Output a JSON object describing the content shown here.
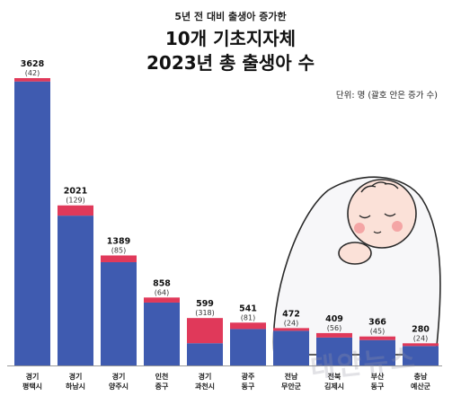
{
  "header": {
    "subtitle": "5년 전 대비 출생아 증가한",
    "title_line1": "10개 기초지자체",
    "title_line2": "2023년 총 출생아 수",
    "unit_note": "단위: 명 (괄호 안은 증가 수)"
  },
  "watermark": "태안뉴스",
  "colors": {
    "base": "#3f5bb0",
    "increase": "#e0395a"
  },
  "chart_data": {
    "type": "bar",
    "stacked": true,
    "title": "",
    "xlabel": "",
    "ylabel": "",
    "ylim": [
      0,
      3700
    ],
    "grid": false,
    "legend": "none",
    "categories": [
      [
        "경기",
        "평택시"
      ],
      [
        "경기",
        "하남시"
      ],
      [
        "경기",
        "양주시"
      ],
      [
        "인천",
        "중구"
      ],
      [
        "경기",
        "과천시"
      ],
      [
        "광주",
        "동구"
      ],
      [
        "전남",
        "무안군"
      ],
      [
        "전북",
        "김제시"
      ],
      [
        "부산",
        "동구"
      ],
      [
        "충남",
        "예산군"
      ]
    ],
    "totals": [
      3628,
      2021,
      1389,
      858,
      599,
      541,
      472,
      409,
      366,
      280
    ],
    "increases": [
      42,
      129,
      85,
      64,
      318,
      81,
      24,
      56,
      45,
      24
    ],
    "total_labels": [
      "3628",
      "2021",
      "1389",
      "858",
      "599",
      "541",
      "472",
      "409",
      "366",
      "280"
    ],
    "increase_labels": [
      "(42)",
      "(129)",
      "(85)",
      "(64)",
      "(318)",
      "(81)",
      "(24)",
      "(56)",
      "(45)",
      "(24)"
    ]
  }
}
